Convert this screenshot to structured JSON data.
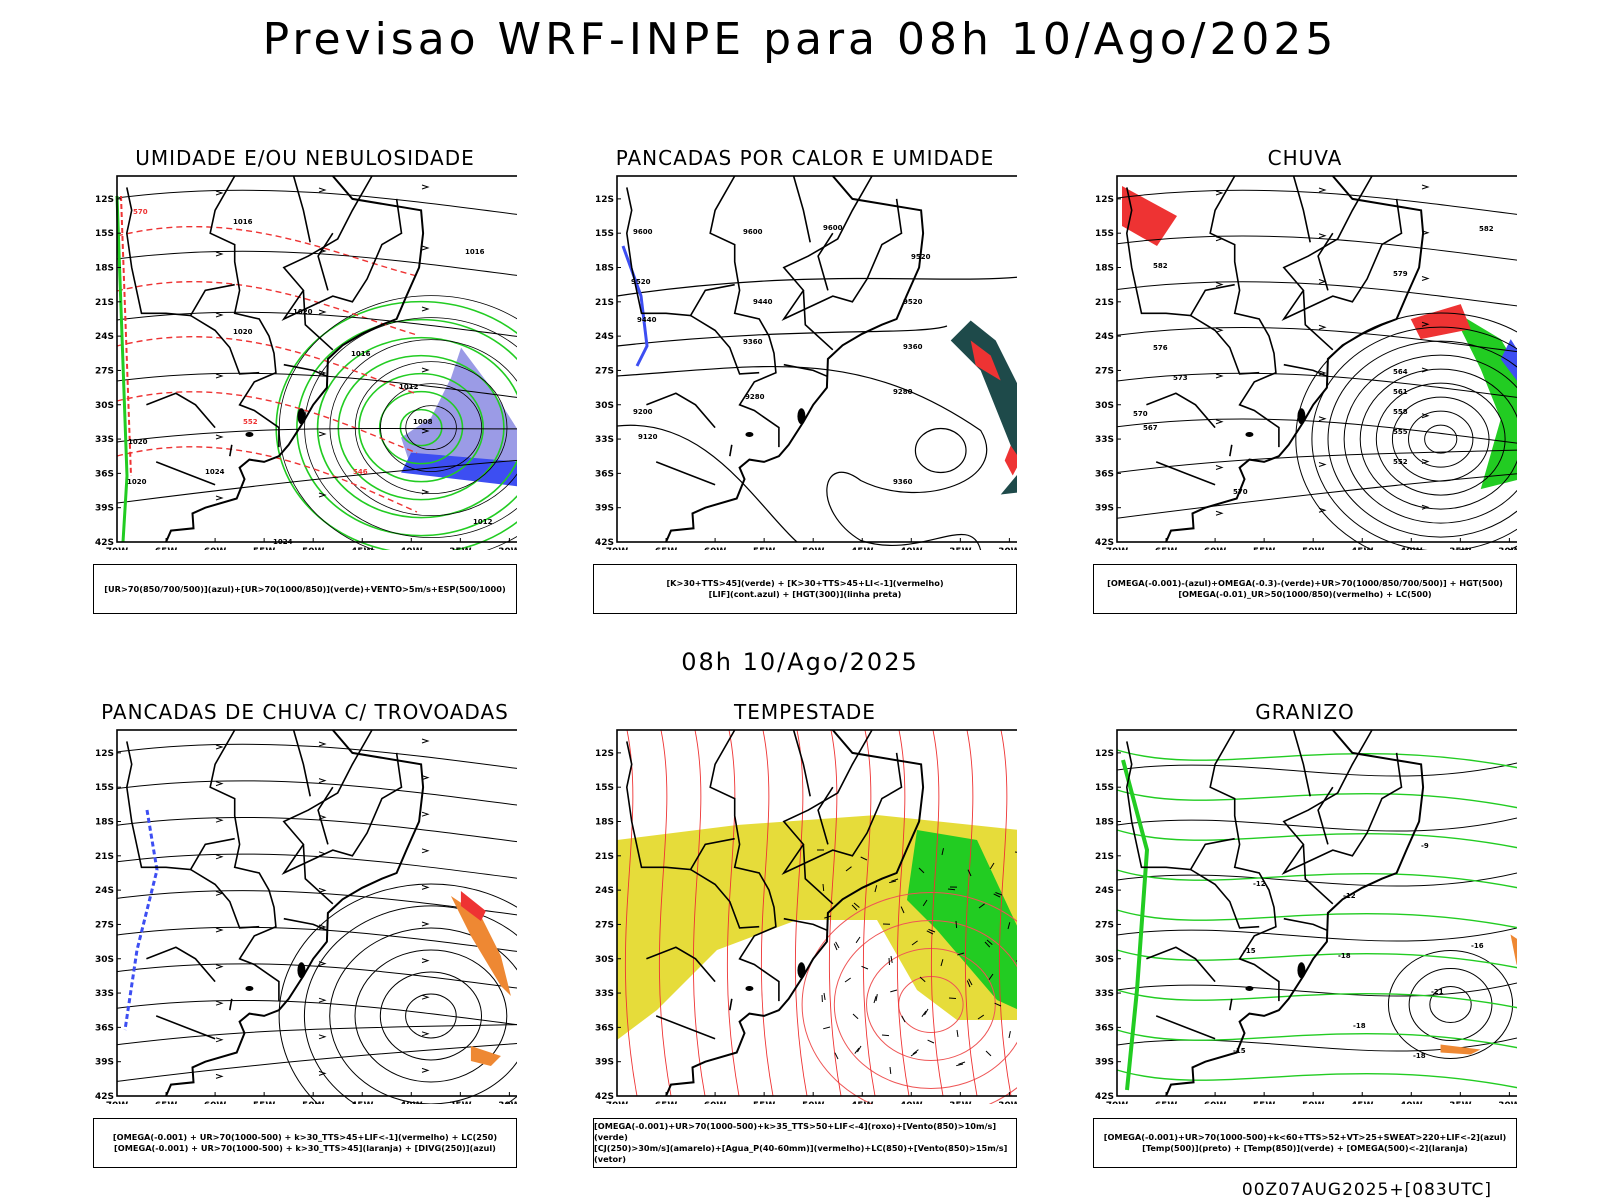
{
  "title": "Previsao WRF-INPE  para 08h 10/Ago/2025",
  "subtitle": "08h 10/Ago/2025",
  "footer": "00Z07AUG2025+[083UTC]",
  "lat_ticks": [
    "12S",
    "15S",
    "18S",
    "21S",
    "24S",
    "27S",
    "30S",
    "33S",
    "36S",
    "39S",
    "42S"
  ],
  "lon_ticks": [
    "70W",
    "65W",
    "60W",
    "55W",
    "50W",
    "45W",
    "40W",
    "35W",
    "30W"
  ],
  "panels": [
    {
      "title": "UMIDADE E/OU NEBULOSIDADE",
      "legend": [
        "[UR>70(850/700/500)](azul)+[UR>70(1000/850)](verde)+VENTO>5m/s+ESP(500/1000)"
      ],
      "labels": [
        "1016",
        "1016",
        "1020",
        "1020",
        "1016",
        "1012",
        "1008",
        "1012",
        "1020",
        "1024",
        "1024",
        "1020",
        "570",
        "552",
        "546"
      ]
    },
    {
      "title": "PANCADAS POR CALOR E UMIDADE",
      "legend": [
        "[K>30+TTS>45](verde) + [K>30+TTS>45+LI<-1](vermelho)",
        "[LIF](cont.azul) + [HGT(300)](linha preta)"
      ],
      "labels": [
        "9600",
        "9600",
        "9600",
        "9520",
        "9520",
        "9520",
        "9440",
        "9440",
        "9360",
        "9360",
        "9280",
        "9200",
        "9120",
        "9280",
        "9360"
      ]
    },
    {
      "title": "CHUVA",
      "legend": [
        "[OMEGA(-0.001)-(azul)+OMEGA(-0.3)-(verde)+UR>70(1000/850/700/500)] + HGT(500)",
        "[OMEGA(-0.01)_UR>50(1000/850)(vermelho) + LC(500)"
      ],
      "labels": [
        "582",
        "582",
        "579",
        "576",
        "573",
        "570",
        "567",
        "564",
        "561",
        "558",
        "555",
        "552",
        "570"
      ]
    },
    {
      "title": "PANCADAS DE CHUVA C/ TROVOADAS",
      "legend": [
        "[OMEGA(-0.001) + UR>70(1000-500) + k>30_TTS>45+LIF<-1](vermelho) + LC(250)",
        "[OMEGA(-0.001) + UR>70(1000-500) + k>30_TTS>45](laranja) + [DIVG(250)](azul)"
      ],
      "labels": []
    },
    {
      "title": "TEMPESTADE",
      "legend": [
        "[OMEGA(-0.001)+UR>70(1000-500)+k>35_TTS>50+LIF<-4](roxo)+[Vento(850)>10m/s](verde)",
        "[CJ(250)>30m/s](amarelo)+[Agua_P(40-60mm)](vermelho)+LC(850)+[Vento(850)>15m/s](vetor)"
      ],
      "labels": []
    },
    {
      "title": "GRANIZO",
      "legend": [
        "[OMEGA(-0.001)+UR>70(1000-500)+k<60+TTS>52+VT>25+SWEAT>220+LIF<-2](azul)",
        "[Temp(500)](preto) + [Temp(850)](verde) + [OMEGA(500)<-2](laranja)"
      ],
      "labels": [
        "-12",
        "-12",
        "-9",
        "-15",
        "-18",
        "-21",
        "-18",
        "-16",
        "-18",
        "-15"
      ]
    }
  ],
  "colors": {
    "blue": "#3d4ef2",
    "green": "#22cc22",
    "red": "#ee3333",
    "orange": "#ee8833",
    "yellow": "#e6dc3a",
    "teal": "#1e4a4a",
    "purple": "#9b9be6"
  }
}
